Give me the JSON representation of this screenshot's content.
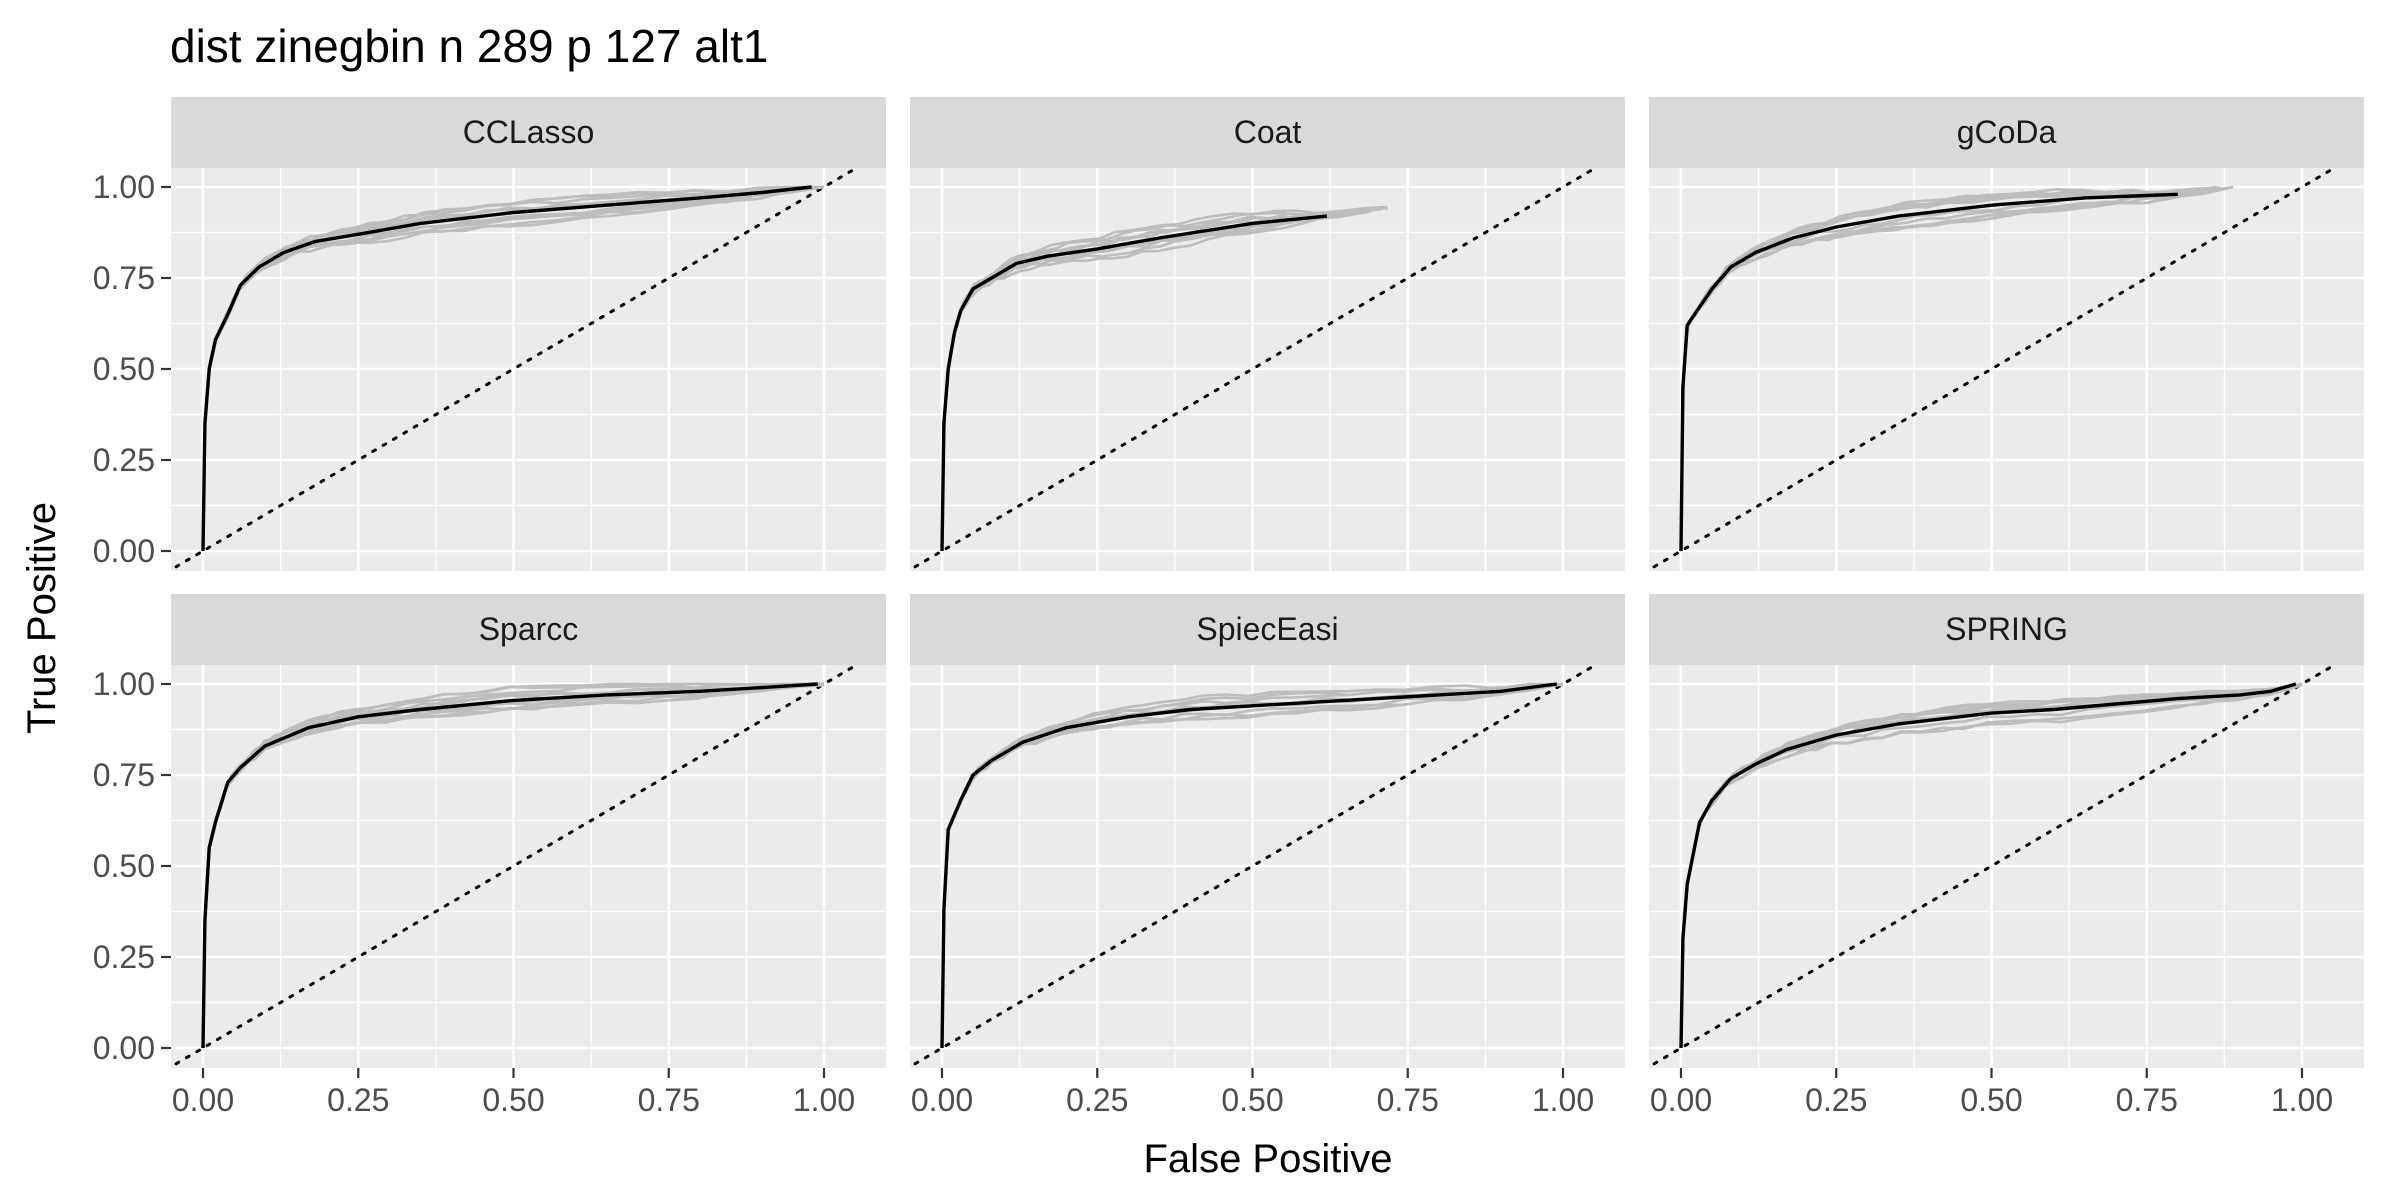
{
  "chart_data": {
    "type": "line",
    "title": "dist zinegbin n 289 p 127 alt1",
    "xlabel": "False Positive",
    "ylabel": "True Positive",
    "xlim": [
      0,
      1
    ],
    "ylim": [
      0,
      1
    ],
    "x_ticks": [
      "0.00",
      "0.25",
      "0.50",
      "0.75",
      "1.00"
    ],
    "y_ticks": [
      "0.00",
      "0.25",
      "0.50",
      "0.75",
      "1.00"
    ],
    "grid": true,
    "facets": [
      "CCLasso",
      "Coat",
      "gCoDa",
      "Sparcc",
      "SpiecEasi",
      "SPRING"
    ],
    "colors": {
      "panel_bg": "#ebebeb",
      "strip_bg": "#d9d9d9",
      "grid": "#ffffff",
      "replicate": "#bdbdbd",
      "mean": "#000000",
      "diagonal": "#000000"
    },
    "panels": [
      {
        "name": "CCLasso",
        "mean_x": [
          0,
          0.003,
          0.01,
          0.02,
          0.04,
          0.06,
          0.09,
          0.13,
          0.18,
          0.25,
          0.35,
          0.5,
          0.65,
          0.8,
          0.9,
          0.98
        ],
        "mean_y": [
          0,
          0.35,
          0.5,
          0.58,
          0.65,
          0.73,
          0.78,
          0.82,
          0.85,
          0.87,
          0.9,
          0.93,
          0.95,
          0.97,
          0.985,
          1.0
        ]
      },
      {
        "name": "Coat",
        "mean_x": [
          0,
          0.003,
          0.01,
          0.02,
          0.03,
          0.05,
          0.08,
          0.12,
          0.17,
          0.25,
          0.35,
          0.5,
          0.62
        ],
        "mean_y": [
          0,
          0.35,
          0.5,
          0.6,
          0.66,
          0.72,
          0.75,
          0.79,
          0.81,
          0.83,
          0.86,
          0.9,
          0.92
        ]
      },
      {
        "name": "gCoDa",
        "mean_x": [
          0,
          0.003,
          0.01,
          0.03,
          0.05,
          0.08,
          0.12,
          0.18,
          0.25,
          0.35,
          0.5,
          0.65,
          0.8
        ],
        "mean_y": [
          0,
          0.45,
          0.62,
          0.67,
          0.72,
          0.78,
          0.82,
          0.86,
          0.89,
          0.92,
          0.95,
          0.97,
          0.98
        ]
      },
      {
        "name": "Sparcc",
        "mean_x": [
          0,
          0.003,
          0.01,
          0.02,
          0.04,
          0.06,
          0.1,
          0.17,
          0.25,
          0.35,
          0.5,
          0.65,
          0.8,
          0.9,
          0.99
        ],
        "mean_y": [
          0,
          0.35,
          0.55,
          0.62,
          0.73,
          0.77,
          0.83,
          0.88,
          0.91,
          0.93,
          0.955,
          0.97,
          0.98,
          0.99,
          1.0
        ]
      },
      {
        "name": "SpiecEasi",
        "mean_x": [
          0,
          0.003,
          0.01,
          0.03,
          0.05,
          0.08,
          0.13,
          0.2,
          0.3,
          0.4,
          0.5,
          0.6,
          0.7,
          0.8,
          0.9,
          0.99
        ],
        "mean_y": [
          0,
          0.38,
          0.6,
          0.68,
          0.75,
          0.79,
          0.84,
          0.88,
          0.91,
          0.93,
          0.94,
          0.95,
          0.96,
          0.97,
          0.98,
          1.0
        ]
      },
      {
        "name": "SPRING",
        "mean_x": [
          0,
          0.003,
          0.01,
          0.03,
          0.05,
          0.08,
          0.12,
          0.17,
          0.25,
          0.35,
          0.5,
          0.6,
          0.7,
          0.8,
          0.9,
          0.95,
          0.99
        ],
        "mean_y": [
          0,
          0.3,
          0.45,
          0.62,
          0.68,
          0.74,
          0.78,
          0.82,
          0.86,
          0.89,
          0.92,
          0.93,
          0.945,
          0.96,
          0.97,
          0.98,
          1.0
        ]
      }
    ]
  }
}
